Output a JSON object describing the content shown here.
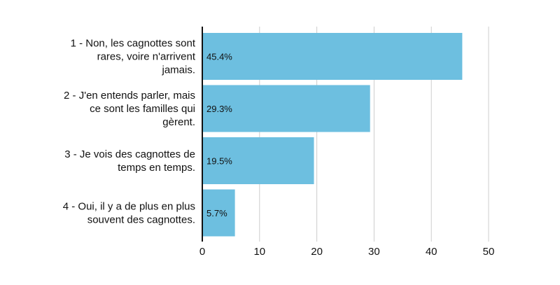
{
  "chart_data": {
    "type": "bar",
    "orientation": "horizontal",
    "title": "",
    "xlabel": "",
    "ylabel": "",
    "categories": [
      [
        "1 - Non, les cagnottes sont",
        "rares, voire n'arrivent",
        "jamais."
      ],
      [
        "2 - J'en entends parler, mais",
        "ce sont les familles qui",
        "gèrent."
      ],
      [
        "3 - Je vois des cagnottes de",
        "temps en temps."
      ],
      [
        "4 - Oui, il y a de plus en plus",
        "souvent des cagnottes."
      ]
    ],
    "values": [
      45.4,
      29.3,
      19.5,
      5.7
    ],
    "data_labels": [
      "45.4%",
      "29.3%",
      "19.5%",
      "5.7%"
    ],
    "xlim": [
      0,
      50
    ],
    "x_ticks": [
      0,
      10,
      20,
      30,
      40,
      50
    ],
    "x_tick_labels": [
      "0",
      "10",
      "20",
      "30",
      "40",
      "50"
    ],
    "grid": "vertical",
    "legend": "none",
    "colors": {
      "bar": "#6dbfe0",
      "grid": "#cccccc",
      "axis": "#111111",
      "text": "#111111"
    }
  }
}
